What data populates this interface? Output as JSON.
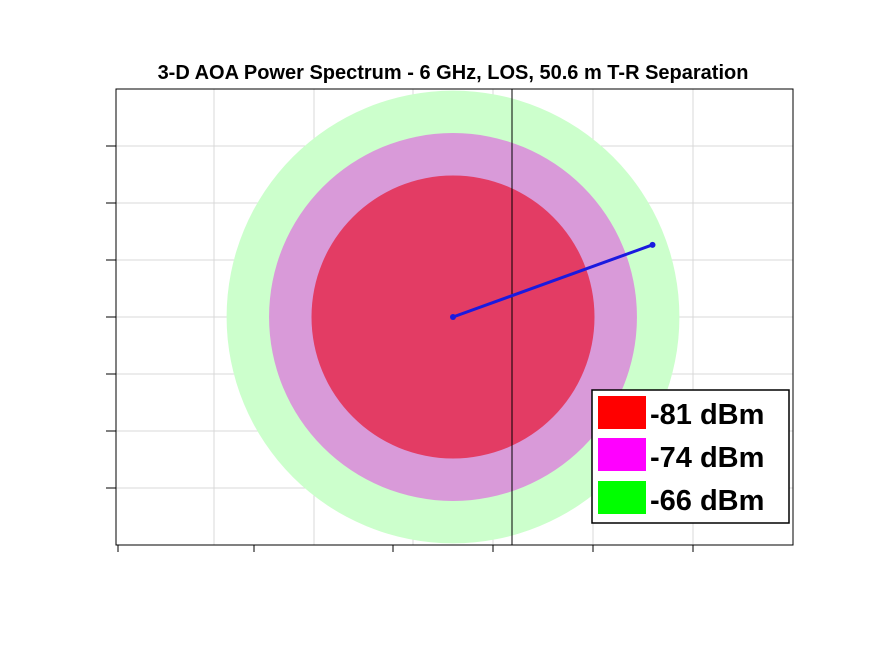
{
  "chart_data": {
    "type": "area",
    "title": "3-D AOA Power Spectrum - 6 GHz, LOS, 50.6 m T-R Separation",
    "xlabel": "",
    "ylabel": "",
    "grid": true,
    "legend_placement": "bottom-right",
    "series": [
      {
        "name": "-81 dBm",
        "color": "#ff0000",
        "radius": 1.0
      },
      {
        "name": "-74 dBm",
        "color": "#ff00ff",
        "radius": 1.3
      },
      {
        "name": "-66 dBm",
        "color": "#00ff00",
        "radius": 1.6
      }
    ],
    "aoa_vector": {
      "from": [
        0,
        0
      ],
      "to": [
        1.41,
        0.51
      ],
      "color": "#1a1adf"
    }
  }
}
